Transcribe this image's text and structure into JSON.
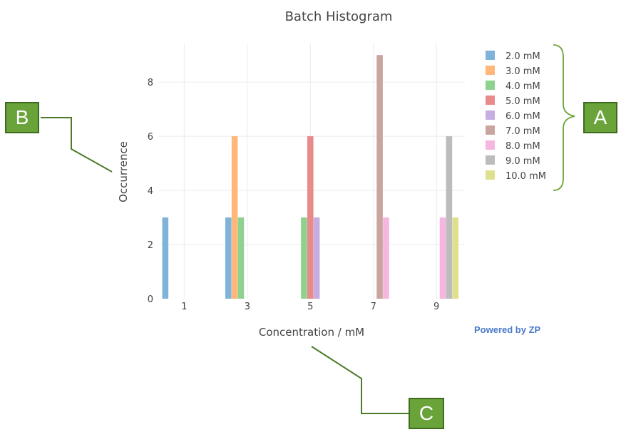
{
  "chart_data": {
    "type": "bar",
    "title": "Batch Histogram",
    "xlabel": "Concentration / mM",
    "ylabel": "Occurrence",
    "x_ticks": [
      "1",
      "3",
      "5",
      "7",
      "9"
    ],
    "y_ticks": [
      "0",
      "2",
      "4",
      "6",
      "8"
    ],
    "xlim": [
      0.2,
      9.9
    ],
    "ylim": [
      0,
      9.4
    ],
    "grid": true,
    "legend_position": "right",
    "series": [
      {
        "name": "2.0 mM",
        "color": "#7fb3d9",
        "bars": [
          {
            "x": 0.4,
            "y": 3
          },
          {
            "x": 2.4,
            "y": 3
          }
        ]
      },
      {
        "name": "3.0 mM",
        "color": "#ffb87a",
        "bars": [
          {
            "x": 2.6,
            "y": 6
          }
        ]
      },
      {
        "name": "4.0 mM",
        "color": "#8fd18f",
        "bars": [
          {
            "x": 2.8,
            "y": 3
          },
          {
            "x": 4.8,
            "y": 3
          }
        ]
      },
      {
        "name": "5.0 mM",
        "color": "#ea8b8b",
        "bars": [
          {
            "x": 5.0,
            "y": 6
          }
        ]
      },
      {
        "name": "6.0 mM",
        "color": "#c7aee0",
        "bars": [
          {
            "x": 5.2,
            "y": 3
          }
        ]
      },
      {
        "name": "7.0 mM",
        "color": "#c9a59f",
        "bars": [
          {
            "x": 7.2,
            "y": 9
          }
        ]
      },
      {
        "name": "8.0 mM",
        "color": "#f5b7e0",
        "bars": [
          {
            "x": 7.4,
            "y": 3
          },
          {
            "x": 9.2,
            "y": 3
          }
        ]
      },
      {
        "name": "9.0 mM",
        "color": "#bcbcbc",
        "bars": [
          {
            "x": 9.4,
            "y": 6
          }
        ]
      },
      {
        "name": "10.0 mM",
        "color": "#dfe08f",
        "bars": [
          {
            "x": 9.6,
            "y": 3
          }
        ]
      }
    ]
  },
  "branding": {
    "powered_by": "Powered by ZP"
  },
  "callouts": {
    "a": "A",
    "b": "B",
    "c": "C"
  },
  "colors": {
    "callout_fill": "#6aa33a",
    "callout_line": "#4a7a2a",
    "grid": "#ebebeb",
    "text": "#444444"
  }
}
